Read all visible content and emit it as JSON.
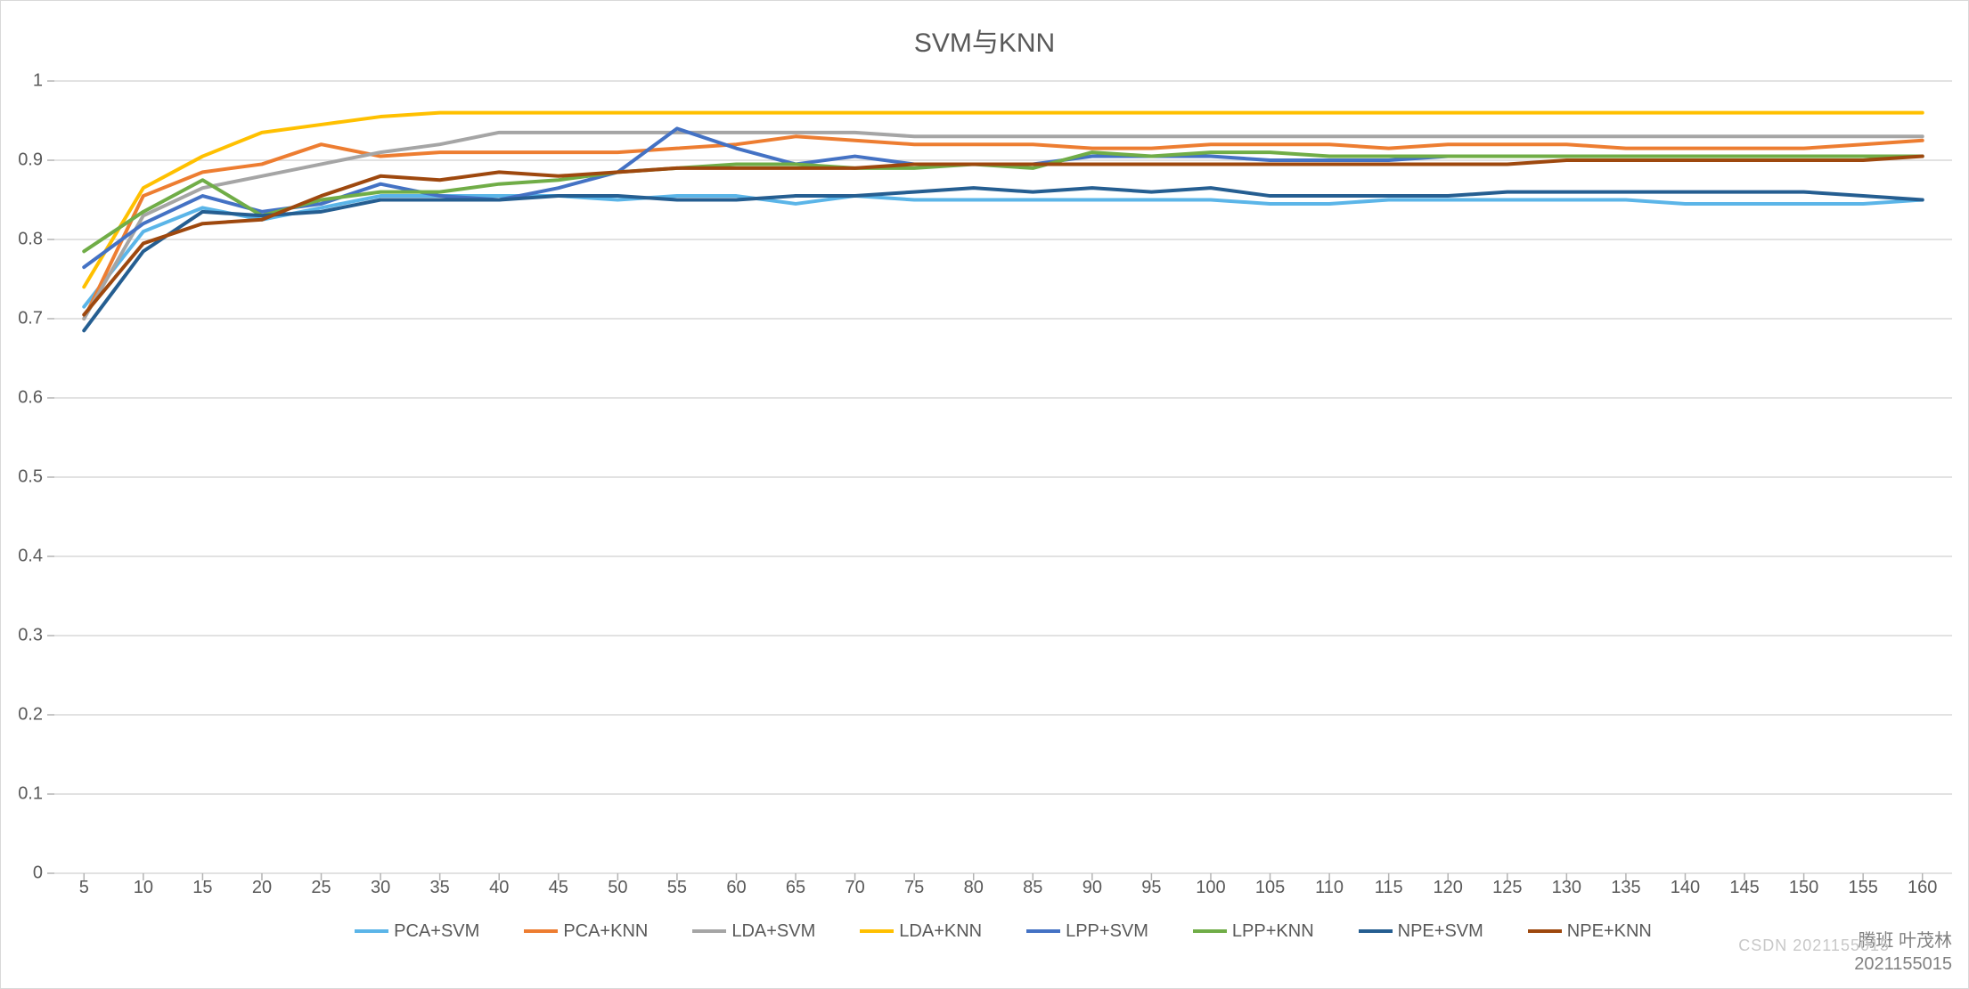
{
  "chart": {
    "type": "line",
    "title": "SVM与KNN",
    "title_fontsize": 30,
    "background_color": "#ffffff",
    "border_color": "#d9d9d9",
    "grid_color": "#d9d9d9",
    "tick_color": "#b3b3b3",
    "label_color": "#595959",
    "label_fontsize": 20,
    "line_width": 4,
    "ylim": [
      0,
      1
    ],
    "ytick_step": 0.1,
    "yticks": [
      "0",
      "0.1",
      "0.2",
      "0.3",
      "0.4",
      "0.5",
      "0.6",
      "0.7",
      "0.8",
      "0.9",
      "1"
    ],
    "x_values": [
      5,
      10,
      15,
      20,
      25,
      30,
      35,
      40,
      45,
      50,
      55,
      60,
      65,
      70,
      75,
      80,
      85,
      90,
      95,
      100,
      105,
      110,
      115,
      120,
      125,
      130,
      135,
      140,
      145,
      150,
      155,
      160
    ],
    "series": [
      {
        "name": "PCA+SVM",
        "color": "#5bb5e8",
        "data": [
          0.715,
          0.81,
          0.84,
          0.825,
          0.84,
          0.855,
          0.855,
          0.855,
          0.855,
          0.85,
          0.855,
          0.855,
          0.845,
          0.855,
          0.85,
          0.85,
          0.85,
          0.85,
          0.85,
          0.85,
          0.845,
          0.845,
          0.85,
          0.85,
          0.85,
          0.85,
          0.85,
          0.845,
          0.845,
          0.845,
          0.845,
          0.85
        ]
      },
      {
        "name": "PCA+KNN",
        "color": "#ed7d31",
        "data": [
          0.7,
          0.855,
          0.885,
          0.895,
          0.92,
          0.905,
          0.91,
          0.91,
          0.91,
          0.91,
          0.915,
          0.92,
          0.93,
          0.925,
          0.92,
          0.92,
          0.92,
          0.915,
          0.915,
          0.92,
          0.92,
          0.92,
          0.915,
          0.92,
          0.92,
          0.92,
          0.915,
          0.915,
          0.915,
          0.915,
          0.92,
          0.925
        ]
      },
      {
        "name": "LDA+SVM",
        "color": "#a5a5a5",
        "data": [
          0.7,
          0.83,
          0.865,
          0.88,
          0.895,
          0.91,
          0.92,
          0.935,
          0.935,
          0.935,
          0.935,
          0.935,
          0.935,
          0.935,
          0.93,
          0.93,
          0.93,
          0.93,
          0.93,
          0.93,
          0.93,
          0.93,
          0.93,
          0.93,
          0.93,
          0.93,
          0.93,
          0.93,
          0.93,
          0.93,
          0.93,
          0.93
        ]
      },
      {
        "name": "LDA+KNN",
        "color": "#ffc000",
        "data": [
          0.74,
          0.865,
          0.905,
          0.935,
          0.945,
          0.955,
          0.96,
          0.96,
          0.96,
          0.96,
          0.96,
          0.96,
          0.96,
          0.96,
          0.96,
          0.96,
          0.96,
          0.96,
          0.96,
          0.96,
          0.96,
          0.96,
          0.96,
          0.96,
          0.96,
          0.96,
          0.96,
          0.96,
          0.96,
          0.96,
          0.96,
          0.96
        ]
      },
      {
        "name": "LPP+SVM",
        "color": "#4472c4",
        "data": [
          0.765,
          0.82,
          0.855,
          0.835,
          0.845,
          0.87,
          0.855,
          0.85,
          0.865,
          0.885,
          0.94,
          0.915,
          0.895,
          0.905,
          0.895,
          0.895,
          0.895,
          0.905,
          0.905,
          0.905,
          0.9,
          0.9,
          0.9,
          0.905,
          0.905,
          0.905,
          0.905,
          0.905,
          0.905,
          0.905,
          0.905,
          0.905
        ]
      },
      {
        "name": "LPP+KNN",
        "color": "#70ad47",
        "data": [
          0.785,
          0.835,
          0.875,
          0.83,
          0.85,
          0.86,
          0.86,
          0.87,
          0.875,
          0.885,
          0.89,
          0.895,
          0.895,
          0.89,
          0.89,
          0.895,
          0.89,
          0.91,
          0.905,
          0.91,
          0.91,
          0.905,
          0.905,
          0.905,
          0.905,
          0.905,
          0.905,
          0.905,
          0.905,
          0.905,
          0.905,
          0.905
        ]
      },
      {
        "name": "NPE+SVM",
        "color": "#255e91",
        "data": [
          0.685,
          0.785,
          0.835,
          0.83,
          0.835,
          0.85,
          0.85,
          0.85,
          0.855,
          0.855,
          0.85,
          0.85,
          0.855,
          0.855,
          0.86,
          0.865,
          0.86,
          0.865,
          0.86,
          0.865,
          0.855,
          0.855,
          0.855,
          0.855,
          0.86,
          0.86,
          0.86,
          0.86,
          0.86,
          0.86,
          0.855,
          0.85
        ]
      },
      {
        "name": "NPE+KNN",
        "color": "#9e480e",
        "data": [
          0.705,
          0.795,
          0.82,
          0.825,
          0.855,
          0.88,
          0.875,
          0.885,
          0.88,
          0.885,
          0.89,
          0.89,
          0.89,
          0.89,
          0.895,
          0.895,
          0.895,
          0.895,
          0.895,
          0.895,
          0.895,
          0.895,
          0.895,
          0.895,
          0.895,
          0.9,
          0.9,
          0.9,
          0.9,
          0.9,
          0.9,
          0.905
        ]
      }
    ]
  },
  "watermark": {
    "line1": "腾班 叶茂林",
    "line2": "2021155015",
    "faint": "CSDN 2021155015"
  }
}
